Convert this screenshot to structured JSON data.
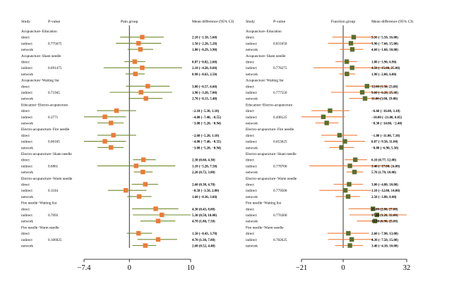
{
  "chart_data": [
    {
      "type": "forest",
      "panel_title": "Pain group",
      "col_study": "Study",
      "col_p": "P-value",
      "col_md": "Mean difference (95% CI)",
      "xticks": [
        -7.4,
        0,
        10
      ],
      "xtick_labels": [
        "−7.4",
        "0",
        "10"
      ],
      "xlim": [
        -7.4,
        10
      ],
      "colors": {
        "marker": "#ef7a35",
        "ci": "#6f8a2e"
      },
      "comparisons": [
        {
          "title": "Acupuncture−Education",
          "p": "0.775675",
          "rows": [
            {
              "type": "direct",
              "est": 2.1,
              "lo": -1.5,
              "hi": 5.6,
              "text": "2.10 (−1.50, 5.60)"
            },
            {
              "type": "indirect",
              "est": 1.5,
              "lo": -2.2,
              "hi": 5.2,
              "text": "1.50 (−2.20, 5.20)"
            },
            {
              "type": "network",
              "est": 1.8,
              "lo": -0.29,
              "hi": 3.9,
              "text": "1.80 (−0.29, 3.90)"
            }
          ]
        },
        {
          "title": "Acupuncture−Sham needle",
          "p": "0.691475",
          "rows": [
            {
              "type": "direct",
              "est": 0.87,
              "lo": -0.82,
              "hi": 2.6,
              "text": "0.87 (−0.82, 2.60)"
            },
            {
              "type": "indirect",
              "est": 2.1,
              "lo": -4.2,
              "hi": 8.6,
              "text": "2.10 (−4.20, 8.60)"
            },
            {
              "type": "network",
              "est": 0.98,
              "lo": -0.63,
              "hi": 2.5,
              "text": "0.98 (−0.63, 2.50)"
            }
          ]
        },
        {
          "title": "Acupuncture−Waiting list",
          "p": "0.71945",
          "rows": [
            {
              "type": "direct",
              "est": 3.0,
              "lo": -0.57,
              "hi": 6.6,
              "text": "3.00 (−0.57, 6.60)"
            },
            {
              "type": "indirect",
              "est": 1.9,
              "lo": -3.2,
              "hi": 7.0,
              "text": "1.90 (−3.20, 7.00)"
            },
            {
              "type": "network",
              "est": 2.7,
              "lo": -0.13,
              "hi": 5.4,
              "text": "2.70 (−0.13, 5.40)"
            }
          ]
        },
        {
          "title": "Education−Electro-acupuncture",
          "p": "0.3771",
          "rows": [
            {
              "type": "direct",
              "est": -2.1,
              "lo": -5.3,
              "hi": 1.1,
              "text": "−2.10 (−5.30, 1.10)"
            },
            {
              "type": "indirect",
              "est": -4.0,
              "lo": -7.4,
              "hi": -0.55,
              "text": "−4.00 (−7.40, −0.55)"
            },
            {
              "type": "network",
              "est": -3.0,
              "lo": -5.2,
              "hi": -0.94,
              "text": "−3.00 (−5.20, −0.94)"
            }
          ]
        },
        {
          "title": "Electro-acupuncture−Fire needle",
          "p": "0.06165",
          "rows": [
            {
              "type": "direct",
              "est": -2.6,
              "lo": -5.2,
              "hi": 1.1,
              "text": "−2.60 (−5.20, 1.10)"
            },
            {
              "type": "indirect",
              "est": -4.0,
              "lo": -7.4,
              "hi": -0.55,
              "text": "−4.00 (−7.40, −0.55)"
            },
            {
              "type": "network",
              "est": -3.0,
              "lo": -5.2,
              "hi": -0.94,
              "text": "−3.00 (−5.20, −0.94)"
            }
          ]
        },
        {
          "title": "Electro-acupuncture−Sham needle",
          "p": "0.6861",
          "rows": [
            {
              "type": "direct",
              "est": 2.3,
              "lo": 0.6,
              "hi": 4.3,
              "text": "2.30 (0.60, 4.30)"
            },
            {
              "type": "indirect",
              "est": 1.1,
              "lo": -5.2,
              "hi": 7.5,
              "text": "1.10 (−5.20, 7.50)"
            },
            {
              "type": "network",
              "est": 2.2,
              "lo": 0.72,
              "hi": 3.8,
              "text": "2.20 (0.72, 3.80)"
            }
          ]
        },
        {
          "title": "Electro-acupuncture−Warm needle",
          "p": "0.1104",
          "rows": [
            {
              "type": "direct",
              "est": 2.6,
              "lo": 0.38,
              "hi": 4.7,
              "text": "2.60 (0.38, 4.70)"
            },
            {
              "type": "indirect",
              "est": -0.58,
              "lo": -3.5,
              "hi": 2.8,
              "text": "−0.58 (−3.50, 2.80)"
            },
            {
              "type": "network",
              "est": 1.6,
              "lo": -0.36,
              "hi": 3.6,
              "text": "1.60 (−0.36, 3.60)"
            }
          ]
        },
        {
          "title": "Fire needle−Waiting list",
          "p": "0.7093",
          "rows": [
            {
              "type": "direct",
              "est": 4.3,
              "lo": 0.43,
              "hi": 8.0,
              "text": "4.30 (0.43, 8.00)"
            },
            {
              "type": "indirect",
              "est": 5.3,
              "lo": 0.58,
              "hi": 10.0,
              "text": "5.30 (0.58, 10.00)"
            },
            {
              "type": "network",
              "est": 4.7,
              "lo": 1.8,
              "hi": 7.5,
              "text": "4.70 (1.80, 7.50)"
            }
          ]
        },
        {
          "title": "Fire needle−Warm needle",
          "p": "0.106925",
          "rows": [
            {
              "type": "direct",
              "est": 1.5,
              "lo": -0.43,
              "hi": 3.7,
              "text": "1.50 (−0.43, 3.70)"
            },
            {
              "type": "indirect",
              "est": 4.7,
              "lo": 1.3,
              "hi": 7.8,
              "text": "4.70 (1.30, 7.80)"
            },
            {
              "type": "network",
              "est": 2.6,
              "lo": 0.52,
              "hi": 4.4,
              "text": "2.60 (0.52, 4.40)"
            }
          ]
        }
      ]
    },
    {
      "type": "forest",
      "panel_title": "Function group",
      "col_study": "Study",
      "col_p": "P-value",
      "col_md": "Mean difference (95% CI)",
      "xticks": [
        -21,
        0,
        32
      ],
      "xtick_labels": [
        "−21",
        "0",
        "32"
      ],
      "xlim": [
        -21,
        32
      ],
      "colors": {
        "marker": "#5b6f2e",
        "ci": "#ef7a35"
      },
      "comparisons": [
        {
          "title": "Acupuncture−Education",
          "p": "0.831650",
          "rows": [
            {
              "type": "direct",
              "est": 5.3,
              "lo": -5.5,
              "hi": 16.0,
              "text": "5.30 (−5.50, 16.00)"
            },
            {
              "type": "indirect",
              "est": 3.9,
              "lo": -7.6,
              "hi": 15.0,
              "text": "3.90 (−7.60, 15.00)"
            },
            {
              "type": "network",
              "est": 4.6,
              "lo": -1.6,
              "hi": 10.0,
              "text": "4.60 (−1.60, 10.00)"
            }
          ]
        },
        {
          "title": "Acupuncture−Sham needle",
          "p": "0.778275",
          "rows": [
            {
              "type": "direct",
              "est": 1.8,
              "lo": -3.9,
              "hi": 6.9,
              "text": "1.80 (−3.90, 6.90)"
            },
            {
              "type": "indirect",
              "est": 4.5,
              "lo": -15.0,
              "hi": 25.0,
              "text": "4.50 (−15.00, 25.00)"
            },
            {
              "type": "network",
              "est": 1.9,
              "lo": -2.0,
              "hi": 6.0,
              "text": "1.90 (−2.00, 6.00)"
            }
          ]
        },
        {
          "title": "Acupuncture−Waiting list",
          "p": "0.777550",
          "rows": [
            {
              "type": "direct",
              "est": 12.0,
              "lo": 1.3,
              "hi": 23.0,
              "text": "12.00 (1.30, 23.00)"
            },
            {
              "type": "indirect",
              "est": 9.6,
              "lo": -6.2,
              "hi": 25.0,
              "text": "9.60 (−6.20, 25.00)"
            },
            {
              "type": "network",
              "est": 11.0,
              "lo": 3.0,
              "hi": 19.0,
              "text": "11.00 (3.00, 19.00)"
            }
          ]
        },
        {
          "title": "Education−Electro-acupuncture",
          "p": "0.498125",
          "rows": [
            {
              "type": "direct",
              "est": -6.6,
              "lo": -16.0,
              "hi": 3.1,
              "text": "−6.60 (−16.00, 3.10)"
            },
            {
              "type": "indirect",
              "est": -10.0,
              "lo": -21.0,
              "hi": 0.85,
              "text": "−10.00 (−21.00, 0.85)"
            },
            {
              "type": "network",
              "est": -8.3,
              "lo": -14.0,
              "hi": -2.4,
              "text": "−8.30 (−14.00, −2.40)"
            }
          ]
        },
        {
          "title": "Electro-acupuncture−Fire needle",
          "p": "0.653625",
          "rows": [
            {
              "type": "direct",
              "est": -1.8,
              "lo": -11.0,
              "hi": 7.1,
              "text": "−1.80 (−11.00, 7.10)"
            },
            {
              "type": "indirect",
              "est": 0.87,
              "lo": -9.5,
              "hi": 11.0,
              "text": "0.87 (−9.50, 11.00)"
            },
            {
              "type": "network",
              "est": -0.88,
              "lo": -6.9,
              "hi": 5.5,
              "text": "−0.88 (−6.90, 5.50)"
            }
          ]
        },
        {
          "title": "Electro-acupuncture−Sham needle",
          "p": "0.778700",
          "rows": [
            {
              "type": "direct",
              "est": 6.1,
              "lo": 0.77,
              "hi": 12.0,
              "text": "6.10 (0.77, 12.00)"
            },
            {
              "type": "indirect",
              "est": 3.4,
              "lo": -17.0,
              "hi": 24.0,
              "text": "3.40 (−17.00, 24.00)"
            },
            {
              "type": "network",
              "est": 5.7,
              "lo": 1.7,
              "hi": 10.0,
              "text": "5.70 (1.70, 10.00)"
            }
          ]
        },
        {
          "title": "Electro-acupuncture−Warm needle",
          "p": "0.779500",
          "rows": [
            {
              "type": "direct",
              "est": 3.0,
              "lo": -4.8,
              "hi": 10.0,
              "text": "3.00 (−4.80, 10.00)"
            },
            {
              "type": "indirect",
              "est": 1.1,
              "lo": -12.0,
              "hi": 14.0,
              "text": "1.10 (−12.00, 14.00)"
            },
            {
              "type": "network",
              "est": 2.5,
              "lo": -3.8,
              "hi": 8.4,
              "text": "2.50 (−3.80, 8.40)"
            }
          ]
        },
        {
          "title": "Fire needle−Waiting list",
          "p": "0.776300",
          "rows": [
            {
              "type": "direct",
              "est": 15.0,
              "lo": 2.8,
              "hi": 27.0,
              "text": "15.00 (2.80, 27.00)"
            },
            {
              "type": "indirect",
              "est": 17.0,
              "lo": 3.2,
              "hi": 32.0,
              "text": "17.00 (3.20, 32.00)"
            },
            {
              "type": "network",
              "est": 16.0,
              "lo": 6.9,
              "hi": 25.0,
              "text": "16.00 (6.90, 25.00)"
            }
          ]
        },
        {
          "title": "Fire needle−Warm needle",
          "p": "0.782625",
          "rows": [
            {
              "type": "direct",
              "est": 2.6,
              "lo": -7.9,
              "hi": 13.0,
              "text": "2.60 (−7.90, 13.00)"
            },
            {
              "type": "indirect",
              "est": 4.3,
              "lo": -7.5,
              "hi": 15.0,
              "text": "4.30 (−7.50, 15.00)"
            },
            {
              "type": "network",
              "est": 3.4,
              "lo": -4.1,
              "hi": 10.0,
              "text": "3.40 (−4.10, 10.00)"
            }
          ]
        }
      ]
    }
  ]
}
